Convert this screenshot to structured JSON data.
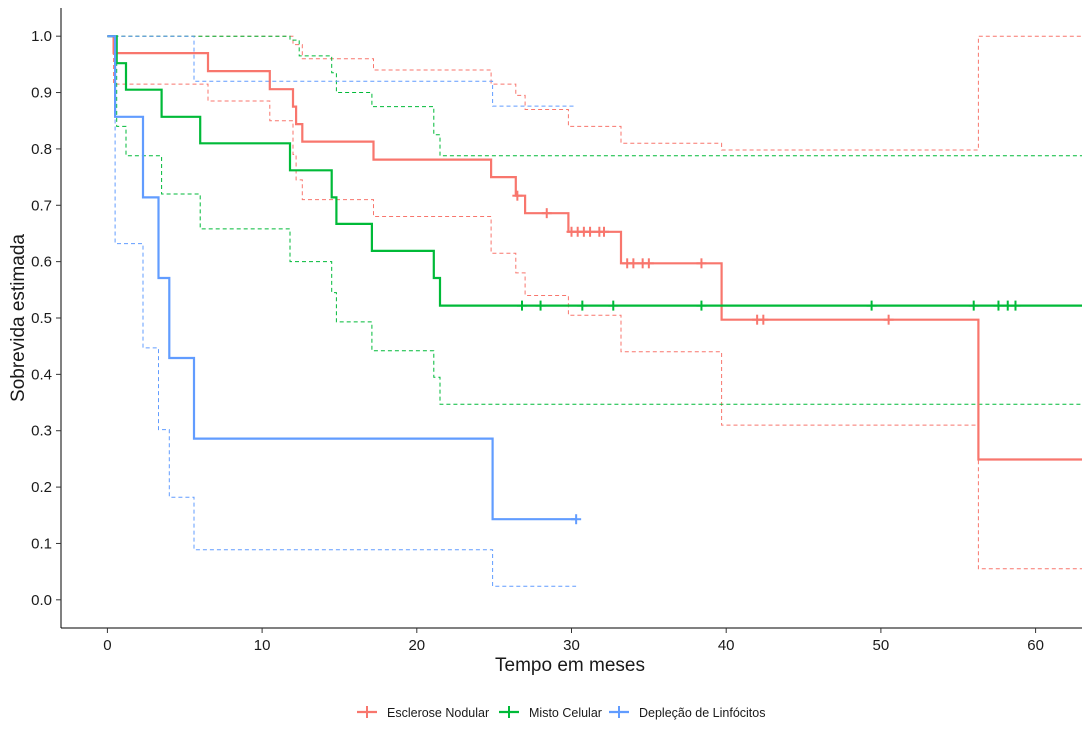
{
  "chart_data": {
    "type": "line",
    "xlabel": "Tempo em meses",
    "ylabel": "Sobrevida estimada",
    "xlim": [
      -3,
      63
    ],
    "ylim": [
      -0.05,
      1.05
    ],
    "x_ticks": [
      0,
      10,
      20,
      30,
      40,
      50,
      60
    ],
    "y_ticks": [
      0.0,
      0.1,
      0.2,
      0.3,
      0.4,
      0.5,
      0.6,
      0.7,
      0.8,
      0.9,
      1.0
    ],
    "y_tick_labels": [
      "0.0",
      "0.1",
      "0.2",
      "0.3",
      "0.4",
      "0.5",
      "0.6",
      "0.7",
      "0.8",
      "0.9",
      "1.0"
    ],
    "grid": false,
    "legend_position": "bottom",
    "series": [
      {
        "name": "Esclerose Nodular",
        "color": "#F8766D",
        "surv": [
          [
            0,
            1.0
          ],
          [
            0.4,
            0.97
          ],
          [
            6.5,
            0.938
          ],
          [
            10.5,
            0.906
          ],
          [
            12,
            0.875
          ],
          [
            12.2,
            0.844
          ],
          [
            12.6,
            0.813
          ],
          [
            17.2,
            0.781
          ],
          [
            24.8,
            0.75
          ],
          [
            26.4,
            0.717
          ],
          [
            27,
            0.686
          ],
          [
            29.8,
            0.653
          ],
          [
            33.2,
            0.597
          ],
          [
            39.7,
            0.497
          ],
          [
            56.3,
            0.249
          ],
          [
            63,
            0.249
          ]
        ],
        "upper": [
          [
            0,
            1.0
          ],
          [
            0.4,
            1.0
          ],
          [
            12,
            0.985
          ],
          [
            12.6,
            0.96
          ],
          [
            17.2,
            0.94
          ],
          [
            24.8,
            0.915
          ],
          [
            26.4,
            0.895
          ],
          [
            27,
            0.87
          ],
          [
            29.8,
            0.84
          ],
          [
            33.2,
            0.81
          ],
          [
            39.7,
            0.798
          ],
          [
            56.3,
            1.0
          ],
          [
            63,
            1.0
          ]
        ],
        "lower": [
          [
            0,
            1.0
          ],
          [
            0.4,
            0.915
          ],
          [
            6.5,
            0.885
          ],
          [
            10.5,
            0.85
          ],
          [
            12,
            0.79
          ],
          [
            12.2,
            0.745
          ],
          [
            12.6,
            0.71
          ],
          [
            17.2,
            0.68
          ],
          [
            24.8,
            0.615
          ],
          [
            26.4,
            0.58
          ],
          [
            27,
            0.54
          ],
          [
            29.8,
            0.505
          ],
          [
            33.2,
            0.44
          ],
          [
            39.7,
            0.31
          ],
          [
            56.3,
            0.055
          ],
          [
            63,
            0.055
          ]
        ],
        "censored": [
          [
            26.5,
            0.717
          ],
          [
            28.4,
            0.686
          ],
          [
            30.0,
            0.653
          ],
          [
            30.4,
            0.653
          ],
          [
            30.8,
            0.653
          ],
          [
            31.2,
            0.653
          ],
          [
            31.8,
            0.653
          ],
          [
            32.1,
            0.653
          ],
          [
            33.6,
            0.597
          ],
          [
            34.0,
            0.597
          ],
          [
            34.6,
            0.597
          ],
          [
            35.0,
            0.597
          ],
          [
            38.4,
            0.597
          ],
          [
            42.0,
            0.497
          ],
          [
            42.4,
            0.497
          ],
          [
            50.5,
            0.497
          ]
        ]
      },
      {
        "name": "Misto Celular",
        "color": "#00BA38",
        "surv": [
          [
            0,
            1.0
          ],
          [
            0.6,
            0.952
          ],
          [
            1.2,
            0.905
          ],
          [
            3.5,
            0.857
          ],
          [
            6.0,
            0.81
          ],
          [
            11.8,
            0.762
          ],
          [
            14.5,
            0.714
          ],
          [
            14.8,
            0.667
          ],
          [
            17.1,
            0.619
          ],
          [
            21.1,
            0.571
          ],
          [
            21.5,
            0.522
          ],
          [
            63,
            0.522
          ]
        ],
        "upper": [
          [
            0,
            1.0
          ],
          [
            11.8,
            0.993
          ],
          [
            12.4,
            0.965
          ],
          [
            14.5,
            0.935
          ],
          [
            14.8,
            0.9
          ],
          [
            17.1,
            0.875
          ],
          [
            21.1,
            0.825
          ],
          [
            21.5,
            0.788
          ],
          [
            63,
            0.788
          ]
        ],
        "lower": [
          [
            0,
            1.0
          ],
          [
            0.6,
            0.84
          ],
          [
            1.2,
            0.788
          ],
          [
            3.5,
            0.72
          ],
          [
            6.0,
            0.658
          ],
          [
            11.8,
            0.6
          ],
          [
            14.5,
            0.545
          ],
          [
            14.8,
            0.493
          ],
          [
            17.1,
            0.442
          ],
          [
            21.1,
            0.395
          ],
          [
            21.5,
            0.347
          ],
          [
            63,
            0.347
          ]
        ],
        "censored": [
          [
            26.8,
            0.522
          ],
          [
            28.0,
            0.522
          ],
          [
            30.7,
            0.522
          ],
          [
            32.7,
            0.522
          ],
          [
            38.4,
            0.522
          ],
          [
            49.4,
            0.522
          ],
          [
            56.0,
            0.522
          ],
          [
            57.6,
            0.522
          ],
          [
            58.2,
            0.522
          ],
          [
            58.7,
            0.522
          ]
        ]
      },
      {
        "name": "Depleção de Linfócitos",
        "color": "#619CFF",
        "surv": [
          [
            0,
            1.0
          ],
          [
            0.5,
            0.857
          ],
          [
            2.3,
            0.714
          ],
          [
            3.3,
            0.571
          ],
          [
            4.0,
            0.429
          ],
          [
            5.6,
            0.286
          ],
          [
            24.9,
            0.143
          ],
          [
            30.3,
            0.143
          ]
        ],
        "upper": [
          [
            0,
            1.0
          ],
          [
            5.6,
            0.92
          ],
          [
            24.9,
            0.876
          ],
          [
            30.3,
            0.876
          ]
        ],
        "lower": [
          [
            0,
            1.0
          ],
          [
            0.5,
            0.632
          ],
          [
            2.3,
            0.447
          ],
          [
            3.3,
            0.302
          ],
          [
            4.0,
            0.182
          ],
          [
            5.6,
            0.089
          ],
          [
            24.9,
            0.024
          ],
          [
            30.3,
            0.024
          ]
        ],
        "censored": [
          [
            30.3,
            0.143
          ]
        ]
      }
    ]
  }
}
